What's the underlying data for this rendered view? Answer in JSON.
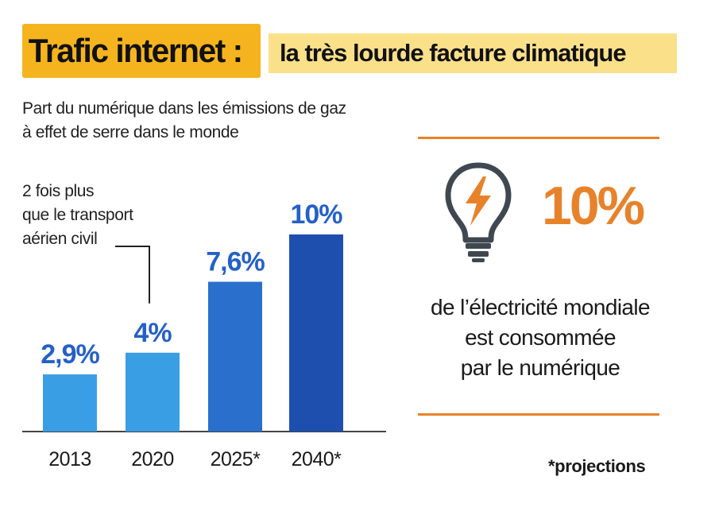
{
  "header": {
    "title_main": "Trafic internet :",
    "title_sub": "la très lourde facture climatique"
  },
  "subtitle": [
    "Part du numérique dans les émissions de gaz",
    "à effet de serre dans le monde"
  ],
  "annotation": [
    "2 fois plus",
    "que le transport",
    "aérien civil"
  ],
  "chart_data": {
    "type": "bar",
    "categories": [
      "2013",
      "2020",
      "2025*",
      "2040*"
    ],
    "values": [
      2.9,
      4,
      7.6,
      10
    ],
    "data_labels": [
      "2,9%",
      "4%",
      "7,6%",
      "10%"
    ],
    "title": "Part du numérique dans les émissions de gaz à effet de serre dans le monde",
    "xlabel": "",
    "ylabel": "",
    "ylim": [
      0,
      10
    ],
    "grid": false,
    "annotation_target": "2020",
    "colors": [
      "#3a9ee4",
      "#3a9ee4",
      "#2a6fcc",
      "#1f4fae"
    ],
    "label_color": "#2460c8"
  },
  "side_panel": {
    "icon": "lightbulb-icon",
    "accent_color": "#e8822a",
    "big_value": "10%",
    "caption": [
      "de l’électricité mondiale",
      "est consommée",
      "par le numérique"
    ]
  },
  "footnote": "*projections"
}
